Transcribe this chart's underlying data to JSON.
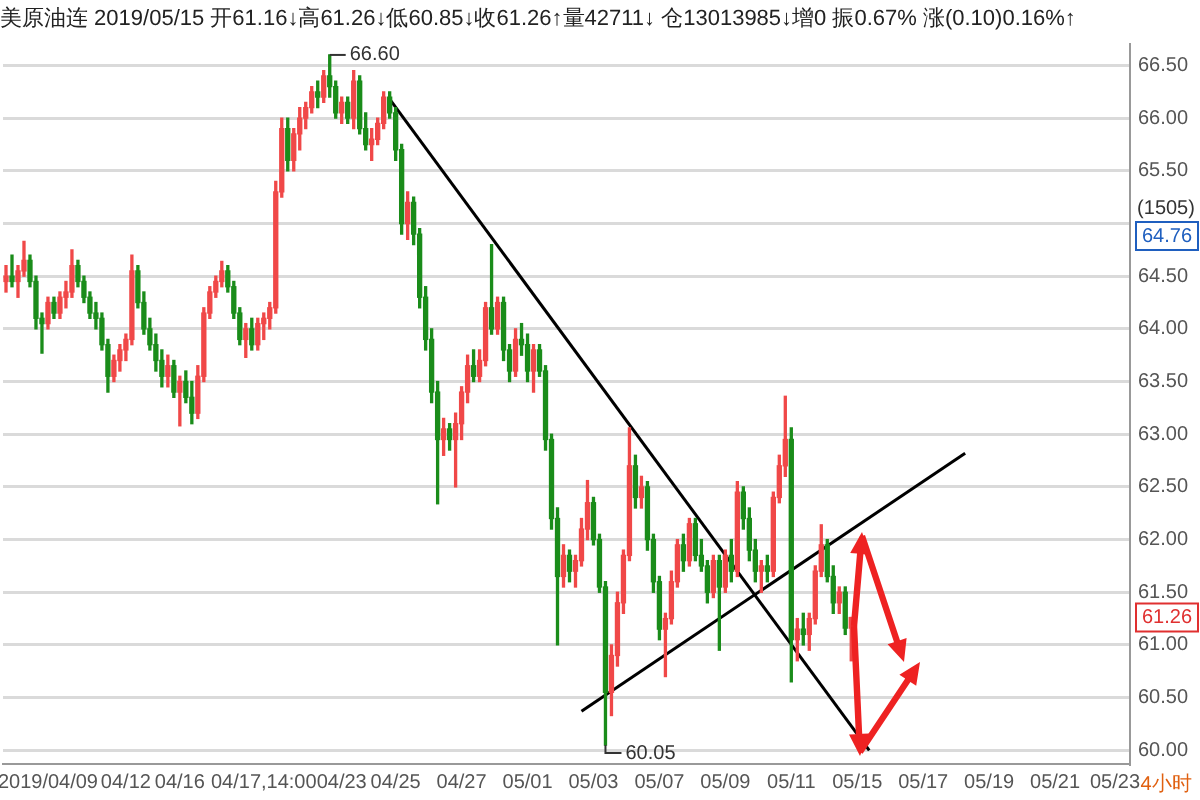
{
  "chart_data": {
    "type": "candlestick",
    "title": "美原油连 2019/05/15 开61.16↓高61.26↓低60.85↓收61.26↑量42711↓ 仓13013985↓增0 振0.67% 涨(0.10)0.16%↑",
    "categories": [
      null,
      null,
      null,
      null,
      null,
      null,
      null,
      "2019/04/09",
      null,
      null,
      null,
      null,
      null,
      null,
      null,
      null,
      null,
      null,
      null,
      null,
      "04/12",
      null,
      null,
      null,
      null,
      null,
      null,
      null,
      null,
      "04/16",
      null,
      null,
      null,
      null,
      null,
      null,
      null,
      null,
      null,
      null,
      null,
      null,
      null,
      "04/17,14:00",
      null,
      null,
      null,
      null,
      null,
      null,
      null,
      null,
      null,
      null,
      null,
      null,
      "04/23",
      null,
      null,
      null,
      null,
      null,
      null,
      null,
      null,
      "04/25",
      null,
      null,
      null,
      null,
      null,
      null,
      null,
      null,
      null,
      null,
      "04/27",
      null,
      null,
      null,
      null,
      null,
      null,
      null,
      null,
      null,
      null,
      "05/01",
      null,
      null,
      null,
      null,
      null,
      null,
      null,
      null,
      null,
      null,
      "05/03",
      null,
      null,
      null,
      null,
      null,
      null,
      null,
      null,
      null,
      null,
      "05/07",
      null,
      null,
      null,
      null,
      null,
      null,
      null,
      null,
      null,
      null,
      "05/09",
      null,
      null,
      null,
      null,
      null,
      null,
      null,
      null,
      null,
      null,
      "05/11",
      null,
      null,
      null,
      null,
      null,
      null,
      null,
      null,
      null,
      null,
      "05/15",
      null,
      null,
      null,
      null,
      null,
      null,
      null,
      null,
      null,
      null,
      "05/17",
      null,
      null,
      null,
      null,
      null,
      null,
      null,
      null,
      null,
      null,
      "05/19",
      null,
      null,
      null,
      null,
      null,
      null,
      null,
      null,
      null,
      null,
      "05/21",
      null,
      null,
      null,
      null,
      null,
      null,
      null,
      null,
      null,
      "05/23",
      null,
      null
    ],
    "ohlc": [
      [
        64.45,
        64.6,
        64.35,
        64.5
      ],
      [
        64.5,
        64.7,
        64.4,
        64.45
      ],
      [
        64.45,
        64.6,
        64.3,
        64.55
      ],
      [
        64.55,
        64.83,
        64.5,
        64.65
      ],
      [
        64.65,
        64.7,
        64.4,
        64.45
      ],
      [
        64.45,
        64.5,
        64.0,
        64.1
      ],
      [
        64.1,
        64.15,
        63.77,
        64.05
      ],
      [
        64.05,
        64.3,
        64.0,
        64.25
      ],
      [
        64.25,
        64.3,
        64.1,
        64.15
      ],
      [
        64.15,
        64.35,
        64.1,
        64.3
      ],
      [
        64.3,
        64.45,
        64.2,
        64.35
      ],
      [
        64.35,
        64.75,
        64.3,
        64.6
      ],
      [
        64.6,
        64.65,
        64.4,
        64.45
      ],
      [
        64.45,
        64.5,
        64.25,
        64.3
      ],
      [
        64.3,
        64.35,
        64.1,
        64.15
      ],
      [
        64.15,
        64.25,
        64.0,
        64.1
      ],
      [
        64.1,
        64.15,
        63.8,
        63.85
      ],
      [
        63.85,
        63.9,
        63.4,
        63.55
      ],
      [
        63.55,
        63.75,
        63.5,
        63.7
      ],
      [
        63.7,
        63.85,
        63.6,
        63.8
      ],
      [
        63.8,
        63.95,
        63.7,
        63.9
      ],
      [
        63.9,
        64.7,
        63.85,
        64.55
      ],
      [
        64.55,
        64.6,
        64.2,
        64.25
      ],
      [
        64.25,
        64.35,
        63.95,
        64.0
      ],
      [
        64.0,
        64.1,
        63.8,
        63.85
      ],
      [
        63.85,
        63.95,
        63.6,
        63.7
      ],
      [
        63.7,
        63.8,
        63.45,
        63.55
      ],
      [
        63.55,
        63.75,
        63.45,
        63.65
      ],
      [
        63.65,
        63.7,
        63.35,
        63.4
      ],
      [
        63.4,
        63.55,
        63.08,
        63.5
      ],
      [
        63.5,
        63.6,
        63.3,
        63.35
      ],
      [
        63.35,
        63.5,
        63.1,
        63.2
      ],
      [
        63.2,
        63.65,
        63.15,
        63.55
      ],
      [
        63.55,
        64.2,
        63.5,
        64.15
      ],
      [
        64.15,
        64.4,
        64.1,
        64.35
      ],
      [
        64.35,
        64.5,
        64.3,
        64.45
      ],
      [
        64.45,
        64.64,
        64.4,
        64.55
      ],
      [
        64.55,
        64.6,
        64.35,
        64.4
      ],
      [
        64.4,
        64.45,
        64.1,
        64.15
      ],
      [
        64.15,
        64.2,
        63.85,
        63.9
      ],
      [
        63.9,
        64.05,
        63.73,
        64.0
      ],
      [
        64.0,
        64.1,
        63.8,
        63.85
      ],
      [
        63.85,
        64.1,
        63.8,
        64.05
      ],
      [
        64.05,
        64.15,
        63.9,
        64.1
      ],
      [
        64.1,
        64.25,
        64.0,
        64.2
      ],
      [
        64.2,
        65.4,
        64.15,
        65.3
      ],
      [
        65.3,
        66.0,
        65.25,
        65.9
      ],
      [
        65.9,
        66.0,
        65.5,
        65.6
      ],
      [
        65.6,
        65.9,
        65.5,
        65.85
      ],
      [
        65.85,
        66.1,
        65.7,
        66.0
      ],
      [
        66.0,
        66.15,
        65.9,
        66.1
      ],
      [
        66.1,
        66.3,
        66.05,
        66.25
      ],
      [
        66.25,
        66.35,
        66.1,
        66.2
      ],
      [
        66.2,
        66.45,
        66.15,
        66.4
      ],
      [
        66.4,
        66.6,
        66.2,
        66.3
      ],
      [
        66.3,
        66.35,
        66.0,
        66.05
      ],
      [
        66.05,
        66.2,
        65.95,
        66.15
      ],
      [
        66.15,
        66.2,
        65.95,
        66.0
      ],
      [
        66.0,
        66.45,
        65.9,
        66.35
      ],
      [
        66.35,
        66.4,
        65.85,
        65.9
      ],
      [
        65.9,
        66.05,
        65.7,
        65.75
      ],
      [
        65.75,
        65.9,
        65.6,
        65.8
      ],
      [
        65.8,
        66.0,
        65.75,
        65.95
      ],
      [
        65.95,
        66.25,
        65.9,
        66.2
      ],
      [
        66.2,
        66.25,
        66.0,
        66.05
      ],
      [
        66.05,
        66.1,
        65.6,
        65.7
      ],
      [
        65.7,
        65.75,
        64.9,
        65.0
      ],
      [
        65.0,
        65.3,
        64.85,
        65.2
      ],
      [
        65.2,
        65.25,
        64.8,
        64.9
      ],
      [
        64.9,
        64.95,
        64.2,
        64.3
      ],
      [
        64.3,
        64.4,
        63.8,
        63.9
      ],
      [
        63.9,
        64.0,
        63.3,
        63.4
      ],
      [
        63.4,
        63.5,
        62.34,
        62.95
      ],
      [
        62.95,
        63.15,
        62.8,
        63.05
      ],
      [
        63.05,
        63.1,
        62.85,
        62.95
      ],
      [
        62.95,
        63.2,
        62.5,
        63.1
      ],
      [
        63.1,
        63.45,
        62.95,
        63.4
      ],
      [
        63.4,
        63.75,
        63.3,
        63.65
      ],
      [
        63.65,
        63.8,
        63.5,
        63.55
      ],
      [
        63.55,
        63.8,
        63.5,
        63.7
      ],
      [
        63.7,
        64.25,
        63.65,
        64.2
      ],
      [
        64.2,
        64.8,
        63.95,
        64.0
      ],
      [
        64.0,
        64.3,
        63.95,
        64.25
      ],
      [
        64.25,
        64.3,
        63.7,
        63.8
      ],
      [
        63.8,
        63.85,
        63.5,
        63.6
      ],
      [
        63.6,
        64.0,
        63.55,
        63.9
      ],
      [
        63.9,
        64.05,
        63.75,
        63.85
      ],
      [
        63.85,
        63.95,
        63.5,
        63.6
      ],
      [
        63.6,
        63.85,
        63.4,
        63.8
      ],
      [
        63.8,
        63.85,
        63.55,
        63.6
      ],
      [
        63.6,
        63.65,
        62.85,
        62.95
      ],
      [
        62.95,
        63.0,
        62.1,
        62.2
      ],
      [
        62.2,
        62.3,
        61.0,
        61.65
      ],
      [
        61.65,
        61.95,
        61.55,
        61.85
      ],
      [
        61.85,
        61.9,
        61.6,
        61.7
      ],
      [
        61.7,
        61.85,
        61.55,
        61.8
      ],
      [
        61.8,
        62.2,
        61.75,
        62.1
      ],
      [
        62.1,
        62.56,
        62.0,
        62.35
      ],
      [
        62.35,
        62.4,
        61.95,
        62.0
      ],
      [
        62.0,
        62.05,
        61.5,
        61.55
      ],
      [
        61.55,
        61.6,
        60.05,
        60.55
      ],
      [
        60.55,
        61.0,
        60.33,
        60.9
      ],
      [
        60.9,
        61.5,
        60.8,
        61.4
      ],
      [
        61.4,
        61.9,
        61.3,
        61.85
      ],
      [
        61.85,
        63.06,
        61.8,
        62.7
      ],
      [
        62.7,
        62.8,
        62.3,
        62.4
      ],
      [
        62.4,
        62.6,
        62.3,
        62.5
      ],
      [
        62.5,
        62.55,
        61.9,
        62.0
      ],
      [
        62.0,
        62.05,
        61.5,
        61.6
      ],
      [
        61.6,
        61.65,
        61.05,
        61.15
      ],
      [
        61.15,
        61.3,
        60.7,
        61.25
      ],
      [
        61.25,
        61.7,
        61.2,
        61.6
      ],
      [
        61.6,
        62.0,
        61.55,
        61.95
      ],
      [
        61.95,
        62.05,
        61.7,
        61.8
      ],
      [
        61.8,
        62.2,
        61.75,
        62.15
      ],
      [
        62.15,
        62.2,
        61.8,
        61.85
      ],
      [
        61.85,
        62.0,
        61.7,
        61.75
      ],
      [
        61.75,
        61.8,
        61.4,
        61.5
      ],
      [
        61.5,
        61.85,
        61.45,
        61.8
      ],
      [
        61.8,
        61.85,
        60.95,
        61.55
      ],
      [
        61.55,
        61.9,
        61.5,
        61.85
      ],
      [
        61.85,
        62.0,
        61.6,
        61.7
      ],
      [
        61.7,
        62.55,
        61.65,
        62.45
      ],
      [
        62.45,
        62.5,
        62.1,
        62.2
      ],
      [
        62.2,
        62.3,
        61.8,
        61.9
      ],
      [
        61.9,
        62.0,
        61.6,
        61.7
      ],
      [
        61.7,
        61.8,
        61.5,
        61.75
      ],
      [
        61.75,
        61.85,
        61.6,
        61.7
      ],
      [
        61.7,
        62.45,
        61.65,
        62.4
      ],
      [
        62.4,
        62.8,
        62.35,
        62.7
      ],
      [
        62.7,
        63.36,
        62.6,
        62.95
      ],
      [
        62.95,
        63.06,
        60.65,
        61.05
      ],
      [
        61.05,
        61.25,
        60.85,
        61.15
      ],
      [
        61.15,
        61.3,
        61.0,
        61.1
      ],
      [
        61.1,
        61.3,
        60.95,
        61.25
      ],
      [
        61.25,
        61.75,
        61.2,
        61.7
      ],
      [
        61.7,
        62.14,
        61.65,
        61.95
      ],
      [
        61.95,
        62.0,
        61.6,
        61.65
      ],
      [
        61.65,
        61.75,
        61.3,
        61.4
      ],
      [
        61.4,
        61.55,
        61.3,
        61.5
      ],
      [
        61.5,
        61.55,
        61.1,
        61.16
      ],
      [
        61.16,
        61.26,
        60.85,
        61.26
      ],
      null,
      null,
      null,
      null,
      null,
      null,
      null,
      null,
      null,
      null,
      null,
      null,
      null,
      null,
      null,
      null,
      null,
      null,
      null,
      null,
      null,
      null,
      null,
      null,
      null,
      null,
      null,
      null,
      null,
      null,
      null,
      null,
      null,
      null,
      null,
      null,
      null,
      null,
      null,
      null,
      null,
      null,
      null,
      null,
      null,
      null
    ],
    "series": [
      {
        "type": "line",
        "color": "#000000",
        "values": [
          null,
          null,
          null,
          null,
          null,
          null,
          null,
          null,
          null,
          null,
          null,
          null,
          null,
          null,
          null,
          null,
          null,
          null,
          null,
          null,
          null,
          null,
          null,
          null,
          null,
          null,
          null,
          null,
          null,
          null,
          null,
          null,
          null,
          null,
          null,
          null,
          null,
          null,
          null,
          null,
          null,
          null,
          null,
          null,
          null,
          null,
          null,
          null,
          null,
          null,
          null,
          null,
          null,
          null,
          null,
          null,
          null,
          null,
          null,
          null,
          null,
          null,
          null,
          null,
          66.18,
          null,
          null,
          null,
          null,
          null,
          null,
          null,
          null,
          null,
          null,
          null,
          null,
          null,
          null,
          null,
          null,
          null,
          null,
          null,
          null,
          null,
          null,
          null,
          null,
          null,
          null,
          null,
          null,
          null,
          null,
          null,
          null,
          null,
          null,
          null,
          null,
          null,
          null,
          null,
          null,
          null,
          null,
          null,
          null,
          null,
          null,
          null,
          null,
          null,
          null,
          null,
          null,
          null,
          null,
          null,
          null,
          null,
          null,
          null,
          null,
          null,
          null,
          null,
          null,
          null,
          null,
          null,
          null,
          null,
          null,
          null,
          null,
          null,
          null,
          null,
          null,
          null,
          null,
          null,
          60.0,
          null,
          null,
          null,
          null,
          null,
          null,
          null,
          null,
          null,
          null,
          null,
          null,
          null,
          null,
          null,
          null,
          null,
          null,
          null,
          null,
          null,
          null,
          null,
          null,
          null,
          null,
          null,
          null,
          null,
          null,
          null,
          null,
          null,
          null,
          null,
          null,
          null,
          null,
          null,
          null,
          null,
          null,
          null
        ]
      },
      {
        "type": "line",
        "color": "#000000",
        "values": [
          null,
          null,
          null,
          null,
          null,
          null,
          null,
          null,
          null,
          null,
          null,
          null,
          null,
          null,
          null,
          null,
          null,
          null,
          null,
          null,
          null,
          null,
          null,
          null,
          null,
          null,
          null,
          null,
          null,
          null,
          null,
          null,
          null,
          null,
          null,
          null,
          null,
          null,
          null,
          null,
          null,
          null,
          null,
          null,
          null,
          null,
          null,
          null,
          null,
          null,
          null,
          null,
          null,
          null,
          null,
          null,
          null,
          null,
          null,
          null,
          null,
          null,
          null,
          null,
          null,
          null,
          null,
          null,
          null,
          null,
          null,
          null,
          null,
          null,
          null,
          null,
          null,
          null,
          null,
          null,
          null,
          null,
          null,
          null,
          null,
          null,
          null,
          null,
          null,
          null,
          null,
          null,
          null,
          null,
          null,
          null,
          60.37,
          null,
          null,
          null,
          null,
          null,
          null,
          null,
          null,
          null,
          null,
          null,
          null,
          null,
          null,
          null,
          null,
          null,
          null,
          null,
          null,
          null,
          null,
          null,
          null,
          null,
          null,
          null,
          null,
          null,
          null,
          null,
          null,
          null,
          null,
          null,
          null,
          null,
          null,
          null,
          null,
          null,
          null,
          null,
          null,
          null,
          null,
          null,
          null,
          null,
          null,
          null,
          null,
          null,
          null,
          null,
          null,
          null,
          null,
          null,
          null,
          null,
          null,
          null,
          62.82,
          null,
          null,
          null,
          null,
          null,
          null,
          null,
          null,
          null,
          null,
          null,
          null,
          null,
          null,
          null,
          null,
          null,
          null,
          null,
          null,
          null,
          null,
          null,
          null,
          null,
          null,
          null
        ]
      }
    ],
    "ylim": [
      59.87,
      66.7
    ],
    "yticks": [
      {
        "value": 60,
        "label": "60.00"
      },
      {
        "value": 60.5,
        "label": "60.50"
      },
      {
        "value": 61,
        "label": "61.00"
      },
      {
        "value": 61.5,
        "label": "61.50"
      },
      {
        "value": 62,
        "label": "62.00"
      },
      {
        "value": 62.5,
        "label": "62.50"
      },
      {
        "value": 63,
        "label": "63.00"
      },
      {
        "value": 63.5,
        "label": "63.50"
      },
      {
        "value": 64,
        "label": "64.00"
      },
      {
        "value": 64.5,
        "label": "64.50"
      },
      {
        "value": 65,
        "label": null
      },
      {
        "value": 65.5,
        "label": "65.50"
      },
      {
        "value": 66,
        "label": "66.00"
      },
      {
        "value": 66.5,
        "label": "66.50"
      }
    ],
    "annotations": [
      "66.60",
      "60.05",
      "(1505)",
      "64.76",
      "61.26",
      "4小时"
    ],
    "grid": "y",
    "legend": false
  }
}
